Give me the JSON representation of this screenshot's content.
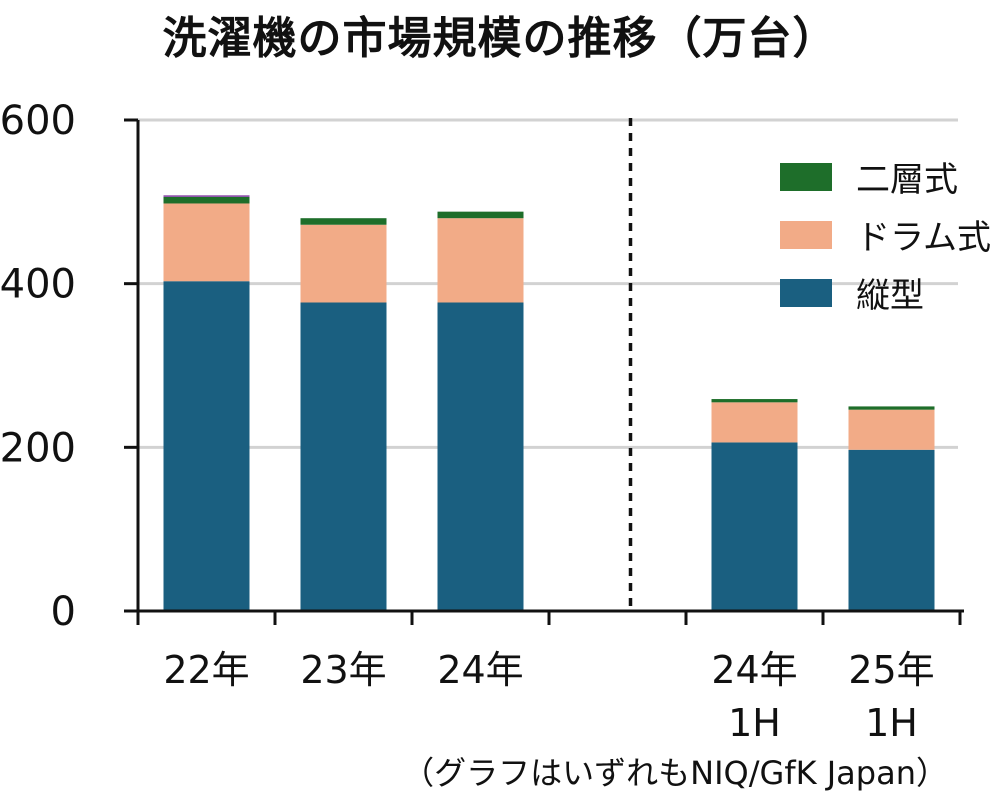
{
  "chart_data": {
    "type": "bar",
    "stacked": true,
    "title": "洗濯機の市場規模の推移（万台）",
    "source": "（グラフはいずれもNIQ/GfK Japan）",
    "categories": [
      "22年",
      "23年",
      "24年",
      "24年\n1H",
      "25年\n1H"
    ],
    "category_lines": [
      [
        "22年"
      ],
      [
        "23年"
      ],
      [
        "24年"
      ],
      [
        "24年",
        "1H"
      ],
      [
        "25年",
        "1H"
      ]
    ],
    "separator_after_index": 2,
    "ylim": [
      0,
      600
    ],
    "yticks": [
      0,
      200,
      400,
      600
    ],
    "grid": true,
    "legend_position": "top-right",
    "series": [
      {
        "name": "縦型",
        "color": "#1a5f80",
        "values": [
          403,
          377,
          377,
          206,
          197
        ]
      },
      {
        "name": "ドラム式",
        "color": "#f2ab87",
        "values": [
          95,
          95,
          103,
          49,
          49
        ]
      },
      {
        "name": "二層式",
        "color": "#1e6e2a",
        "values": [
          8,
          8,
          8,
          4,
          4
        ]
      }
    ],
    "extra_segment": {
      "color": "#8a4aa8",
      "values": [
        2,
        0,
        0,
        0,
        0
      ]
    }
  }
}
